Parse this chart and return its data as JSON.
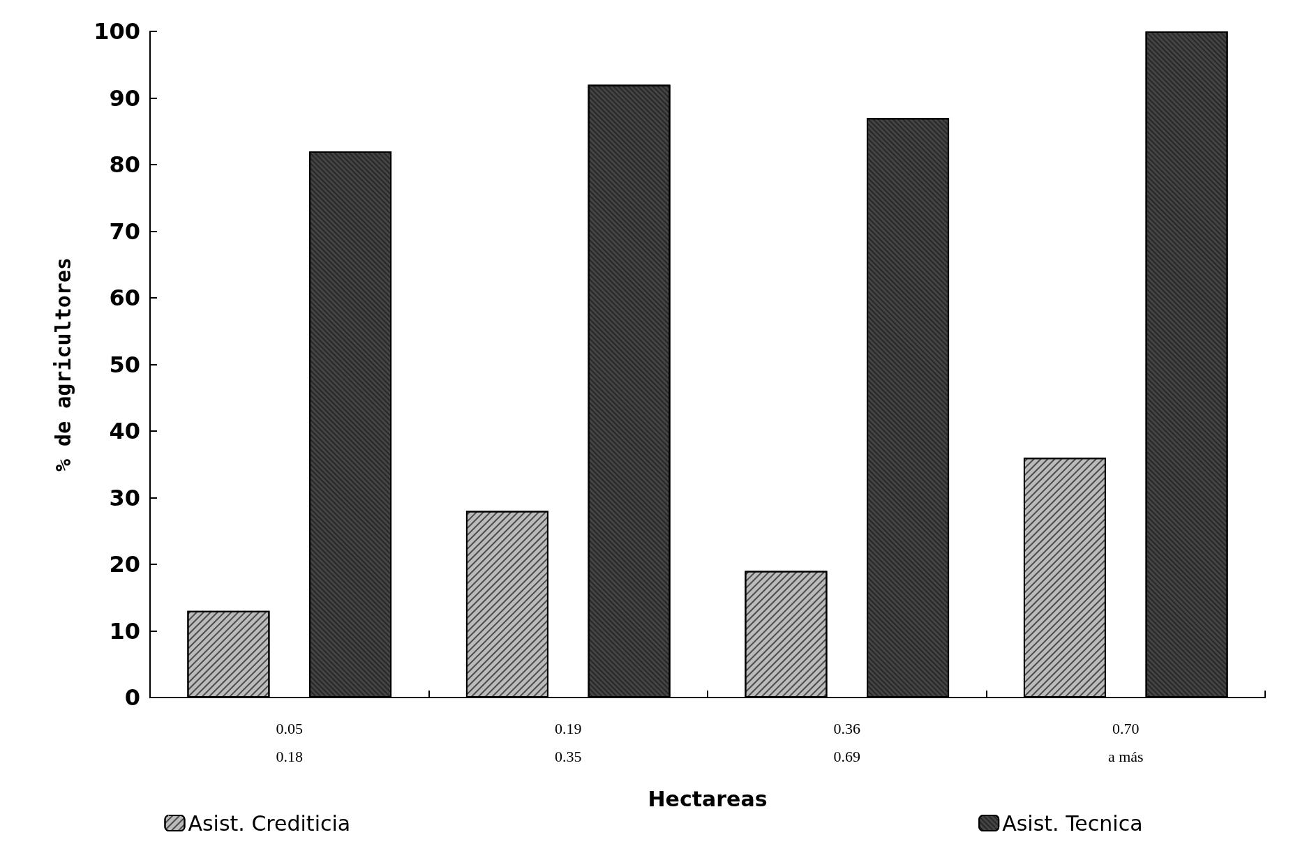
{
  "chart_data": {
    "type": "bar",
    "xlabel": "Hectareas",
    "ylabel": "% de agricultores",
    "categories": [
      "0.05\n0.18",
      "0.19\n0.35",
      "0.36\n0.69",
      "0.70\na más"
    ],
    "series": [
      {
        "name": "Asist. Crediticia",
        "color": "#bbbbbb",
        "values": [
          13,
          28,
          19,
          36
        ]
      },
      {
        "name": "Asist. Tecnica",
        "color": "#444444",
        "values": [
          82,
          92,
          87,
          100
        ]
      }
    ],
    "ylim": [
      0,
      100
    ],
    "yticks": [
      0,
      10,
      20,
      30,
      40,
      50,
      60,
      70,
      80,
      90,
      100
    ],
    "grid": false,
    "legend": "bottom"
  }
}
